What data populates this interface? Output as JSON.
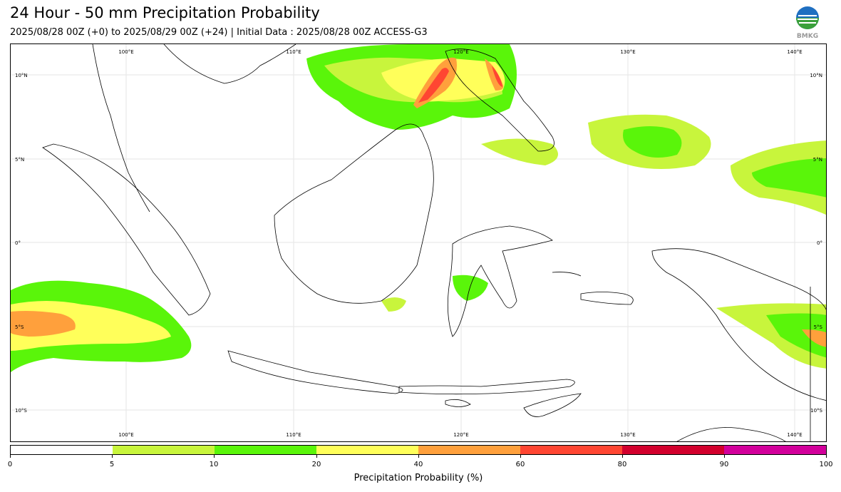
{
  "title": "24 Hour - 50 mm Precipitation Probability",
  "subtitle": "2025/08/28 00Z (+0) to 2025/08/29 00Z (+24) | Initial Data : 2025/08/28 00Z ACCESS-G3",
  "logo": {
    "icon": "bmkg-logo-icon",
    "text": "BMKG"
  },
  "map": {
    "lon_labels": [
      "100°E",
      "110°E",
      "120°E",
      "130°E",
      "140°E"
    ],
    "lat_labels": [
      "10°N",
      "5°N",
      "0°",
      "5°S",
      "10°S"
    ]
  },
  "colorbar": {
    "label": "Precipitation Probability (%)",
    "ticks": [
      "0",
      "5",
      "10",
      "20",
      "40",
      "60",
      "80",
      "90",
      "100"
    ],
    "colors": [
      "#ffffff",
      "#c8f53c",
      "#5af50a",
      "#ffff5a",
      "#ffa03c",
      "#ff4632",
      "#d2002d",
      "#d2009b"
    ]
  }
}
